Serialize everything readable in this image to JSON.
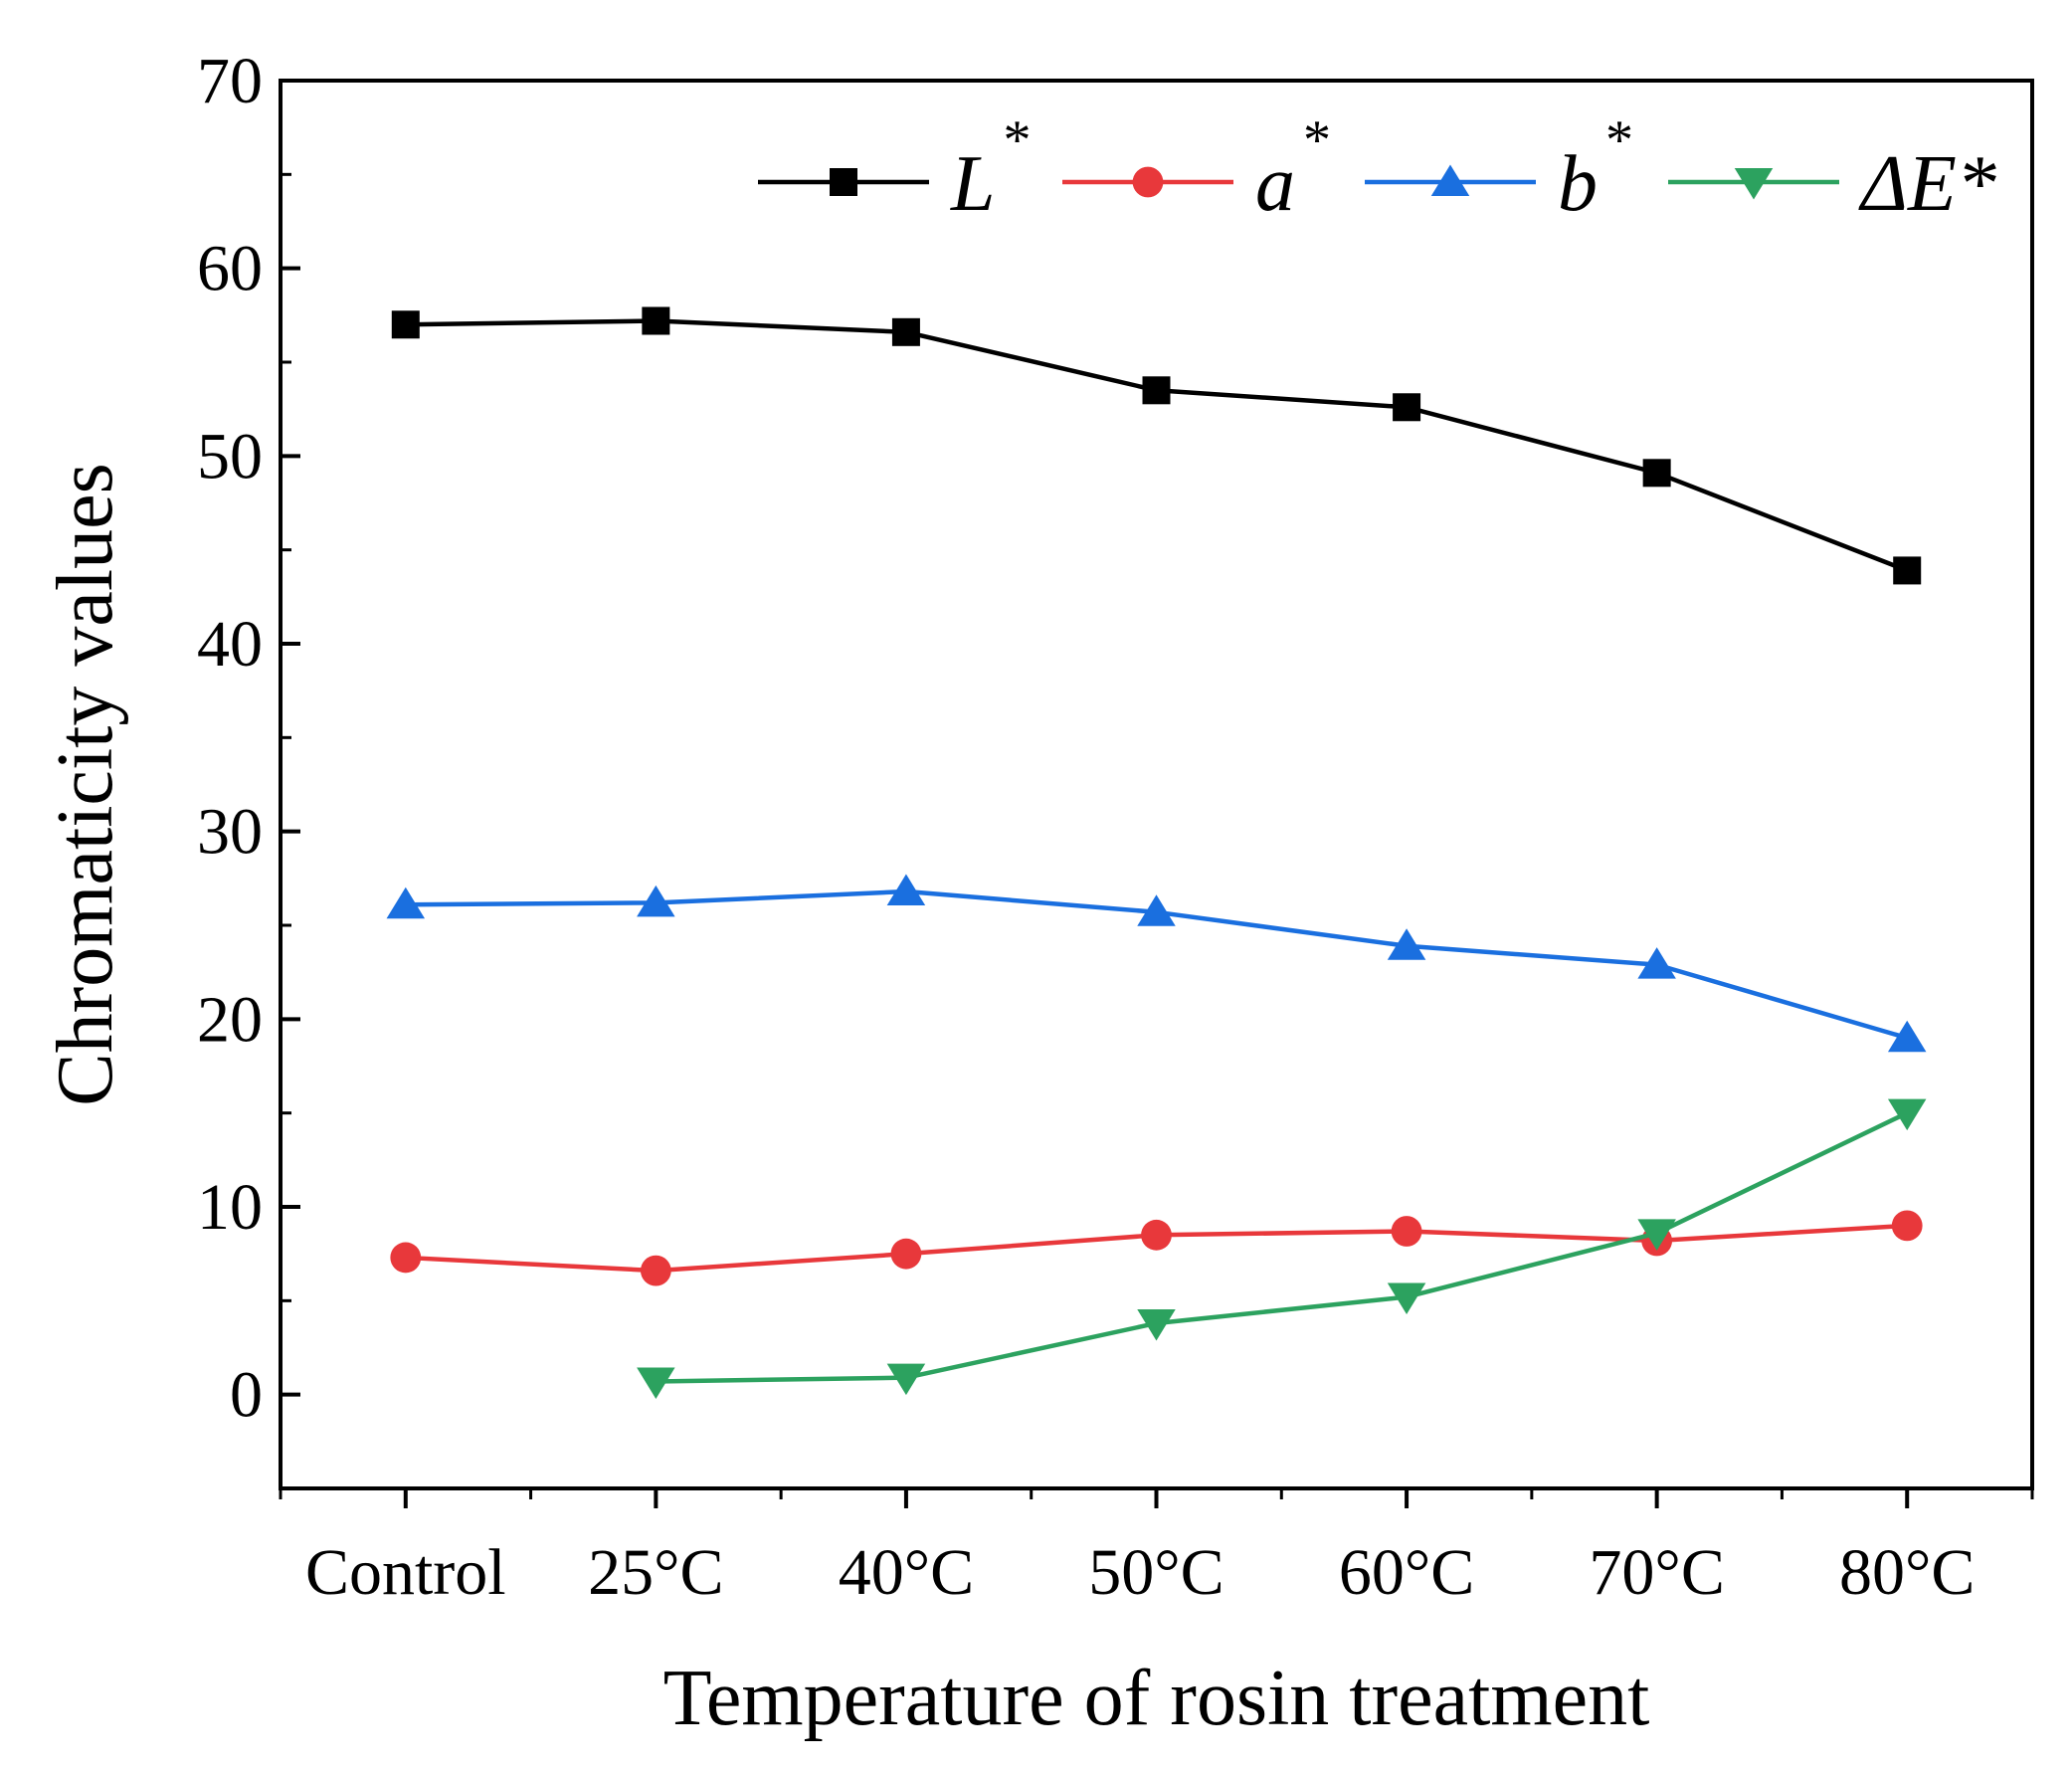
{
  "chart_data": {
    "type": "line",
    "xlabel": "Temperature of rosin treatment",
    "ylabel": "Chromaticity values",
    "categories": [
      "Control",
      "25°C",
      "40°C",
      "50°C",
      "60°C",
      "70°C",
      "80°C"
    ],
    "ylim": [
      -5,
      70
    ],
    "yticks": [
      0,
      10,
      20,
      30,
      40,
      50,
      60,
      70
    ],
    "grid": false,
    "legend_position": "top-right",
    "series": [
      {
        "name": "L",
        "name_suffix": "*",
        "suffix_style": "superscript",
        "marker": "square",
        "color": "#000000",
        "values": [
          57.0,
          57.2,
          56.6,
          53.5,
          52.6,
          49.1,
          43.9
        ]
      },
      {
        "name": "a",
        "name_suffix": "*",
        "suffix_style": "superscript",
        "marker": "circle",
        "color": "#e8383b",
        "values": [
          7.3,
          6.6,
          7.5,
          8.5,
          8.7,
          8.2,
          9.0
        ]
      },
      {
        "name": "b",
        "name_suffix": "*",
        "suffix_style": "superscript",
        "marker": "triangle-up",
        "color": "#1a6fdf",
        "values": [
          26.1,
          26.2,
          26.8,
          25.7,
          23.9,
          22.9,
          19.0
        ]
      },
      {
        "name": "ΔE",
        "name_suffix": "*",
        "suffix_style": "inline",
        "marker": "triangle-down",
        "color": "#2ca25f",
        "values": [
          null,
          0.7,
          0.9,
          3.8,
          5.2,
          8.6,
          15.0
        ]
      }
    ]
  }
}
